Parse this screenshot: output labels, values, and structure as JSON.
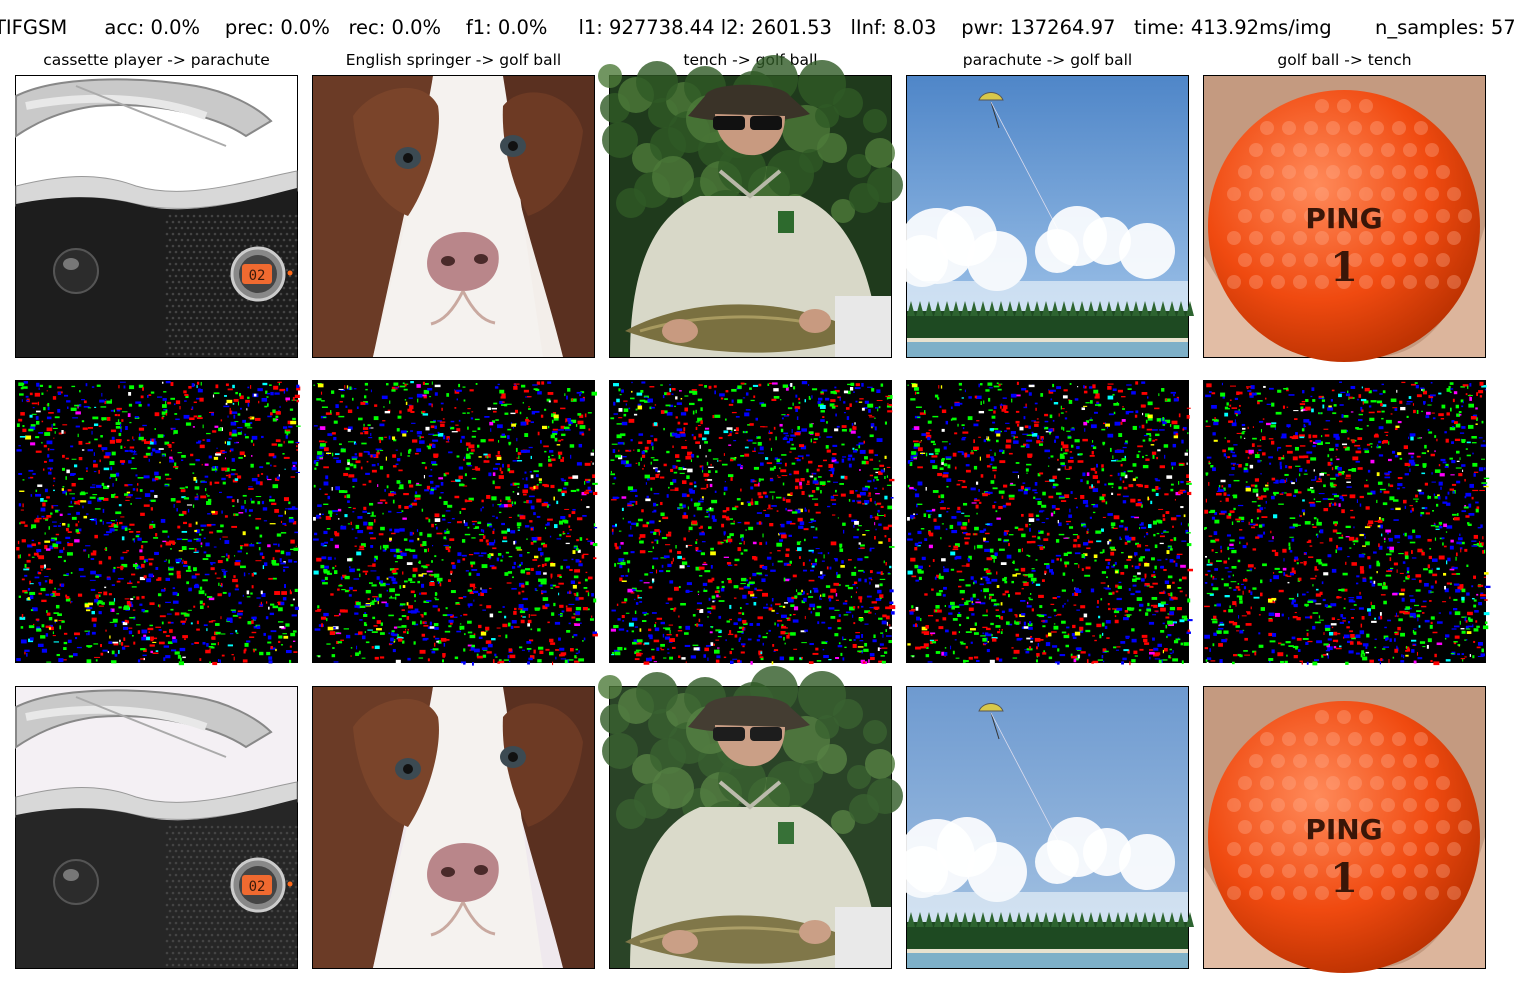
{
  "header": {
    "text": "TIFGSM      acc: 0.0%    prec: 0.0%   rec: 0.0%    f1: 0.0%     l1: 927738.44 l2: 2601.53   lInf: 8.03    pwr: 137264.97   time: 413.92ms/img       n_samples: 57"
  },
  "columns": [
    {
      "title": "cassette player -> parachute",
      "original": {
        "content": "boombox"
      },
      "perturbation": {
        "content": "noise"
      },
      "adversarial": {
        "content": "boombox"
      }
    },
    {
      "title": "English springer -> golf ball",
      "original": {
        "content": "dog"
      },
      "perturbation": {
        "content": "noise"
      },
      "adversarial": {
        "content": "dog"
      }
    },
    {
      "title": "tench -> golf ball",
      "original": {
        "content": "fisherman"
      },
      "perturbation": {
        "content": "noise"
      },
      "adversarial": {
        "content": "fisherman"
      }
    },
    {
      "title": "parachute -> golf ball",
      "original": {
        "content": "sky"
      },
      "perturbation": {
        "content": "noise"
      },
      "adversarial": {
        "content": "sky"
      }
    },
    {
      "title": "golf ball -> tench",
      "original": {
        "content": "golfball",
        "ball_text": "PING",
        "ball_number": "1"
      },
      "perturbation": {
        "content": "noise"
      },
      "adversarial": {
        "content": "golfball",
        "ball_text": "PING",
        "ball_number": "1"
      }
    }
  ],
  "boombox_display": "02",
  "noise_colors": [
    "#ff0000",
    "#00ff00",
    "#0000ff",
    "#ffff00",
    "#00ffff",
    "#ff00ff",
    "#ffffff"
  ]
}
